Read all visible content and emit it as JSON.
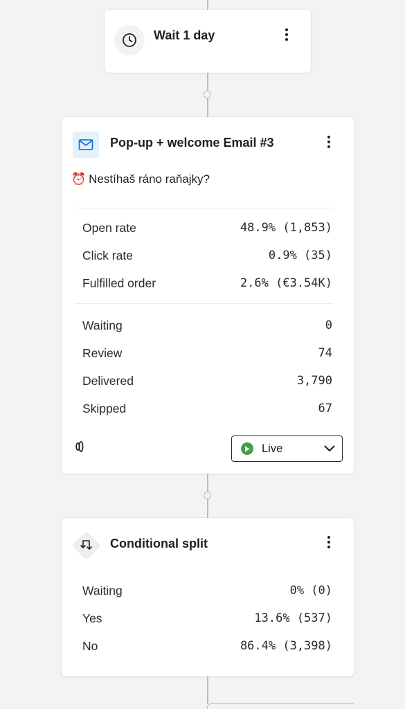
{
  "wait_node": {
    "title": "Wait 1 day"
  },
  "email_node": {
    "title": "Pop-up + welcome Email #3",
    "subject_emoji": "⏰",
    "subject": "Nestíhaš ráno raňajky?",
    "metrics": [
      {
        "label": "Open rate",
        "value": "48.9% (1,853)"
      },
      {
        "label": "Click rate",
        "value": "0.9% (35)"
      },
      {
        "label": "Fulfilled order",
        "value": "2.6% (€3.54K)"
      }
    ],
    "counts": [
      {
        "label": "Waiting",
        "value": "0"
      },
      {
        "label": "Review",
        "value": "74"
      },
      {
        "label": "Delivered",
        "value": "3,790"
      },
      {
        "label": "Skipped",
        "value": "67"
      }
    ],
    "status": "Live"
  },
  "split_node": {
    "title": "Conditional split",
    "rows": [
      {
        "label": "Waiting",
        "value": "0% (0)"
      },
      {
        "label": "Yes",
        "value": "13.6% (537)"
      },
      {
        "label": "No",
        "value": "86.4% (3,398)"
      }
    ]
  },
  "colors": {
    "background": "#f1f3f5",
    "live_green": "#43a047",
    "email_icon_bg": "#e3f1fb",
    "email_icon_stroke": "#1a73e8"
  }
}
